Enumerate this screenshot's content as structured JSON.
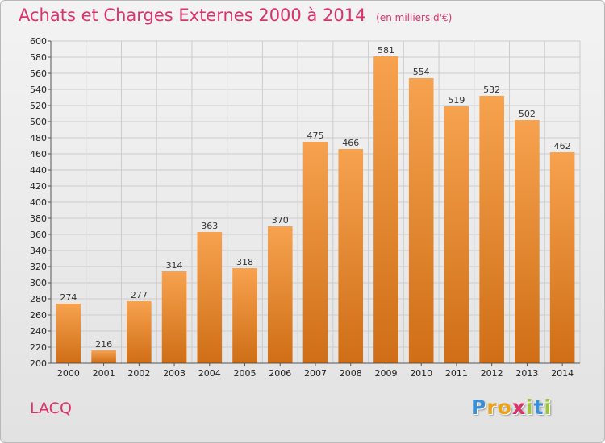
{
  "header": {
    "title": "Achats et Charges Externes 2000 à 2014",
    "subtitle": "(en milliers d'€)"
  },
  "footer": {
    "place": "LACQ",
    "logo_letters": [
      "P",
      "r",
      "o",
      "x",
      "i",
      "t",
      "i"
    ],
    "logo_colors": [
      "#3a8fd6",
      "#e8a21c",
      "#e8a21c",
      "#d9336a",
      "#9bc53d",
      "#3a8fd6",
      "#9bc53d"
    ]
  },
  "colors": {
    "accent": "#d9336a",
    "bar_top": "#f7a24f",
    "bar_bottom": "#cf6e16",
    "grid": "#cccccc"
  },
  "chart_data": {
    "type": "bar",
    "title": "Achats et Charges Externes 2000 à 2014",
    "subtitle": "(en milliers d'€)",
    "categories": [
      "2000",
      "2001",
      "2002",
      "2003",
      "2004",
      "2005",
      "2006",
      "2007",
      "2008",
      "2009",
      "2010",
      "2011",
      "2012",
      "2013",
      "2014"
    ],
    "values": [
      274,
      216,
      277,
      314,
      363,
      318,
      370,
      475,
      466,
      581,
      554,
      519,
      532,
      502,
      462
    ],
    "ylim": [
      200,
      600
    ],
    "yticks": [
      200,
      220,
      240,
      260,
      280,
      300,
      320,
      340,
      360,
      380,
      400,
      420,
      440,
      460,
      480,
      500,
      520,
      540,
      560,
      580,
      600
    ],
    "grid": true,
    "xlabel": "",
    "ylabel": ""
  }
}
